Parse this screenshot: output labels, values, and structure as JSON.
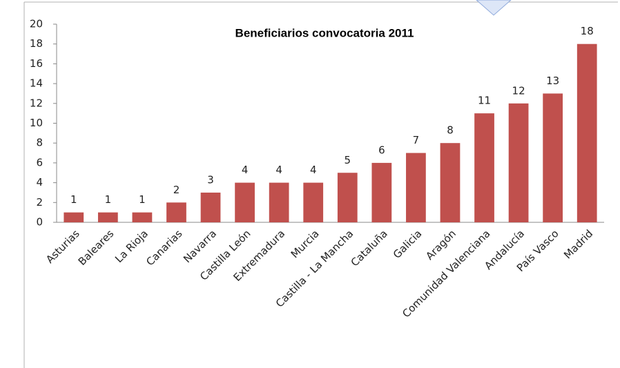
{
  "chart_data": {
    "type": "bar",
    "title": "Beneficiarios convocatoria 2011",
    "categories": [
      "Asturias",
      "Baleares",
      "La Rioja",
      "Canarias",
      "Navarra",
      "Castilla León",
      "Extremadura",
      "Murcia",
      "Castilla - La Mancha",
      "Cataluña",
      "Galicia",
      "Aragón",
      "Comunidad Valenciana",
      "Andalucía",
      "País Vasco",
      "Madrid"
    ],
    "values": [
      1,
      1,
      1,
      2,
      3,
      4,
      4,
      4,
      5,
      6,
      7,
      8,
      11,
      12,
      13,
      18
    ],
    "color": "#c0504d",
    "ylim": [
      0,
      20
    ],
    "yticks": [
      0,
      2,
      4,
      6,
      8,
      10,
      12,
      14,
      16,
      18,
      20
    ],
    "grid": false
  }
}
